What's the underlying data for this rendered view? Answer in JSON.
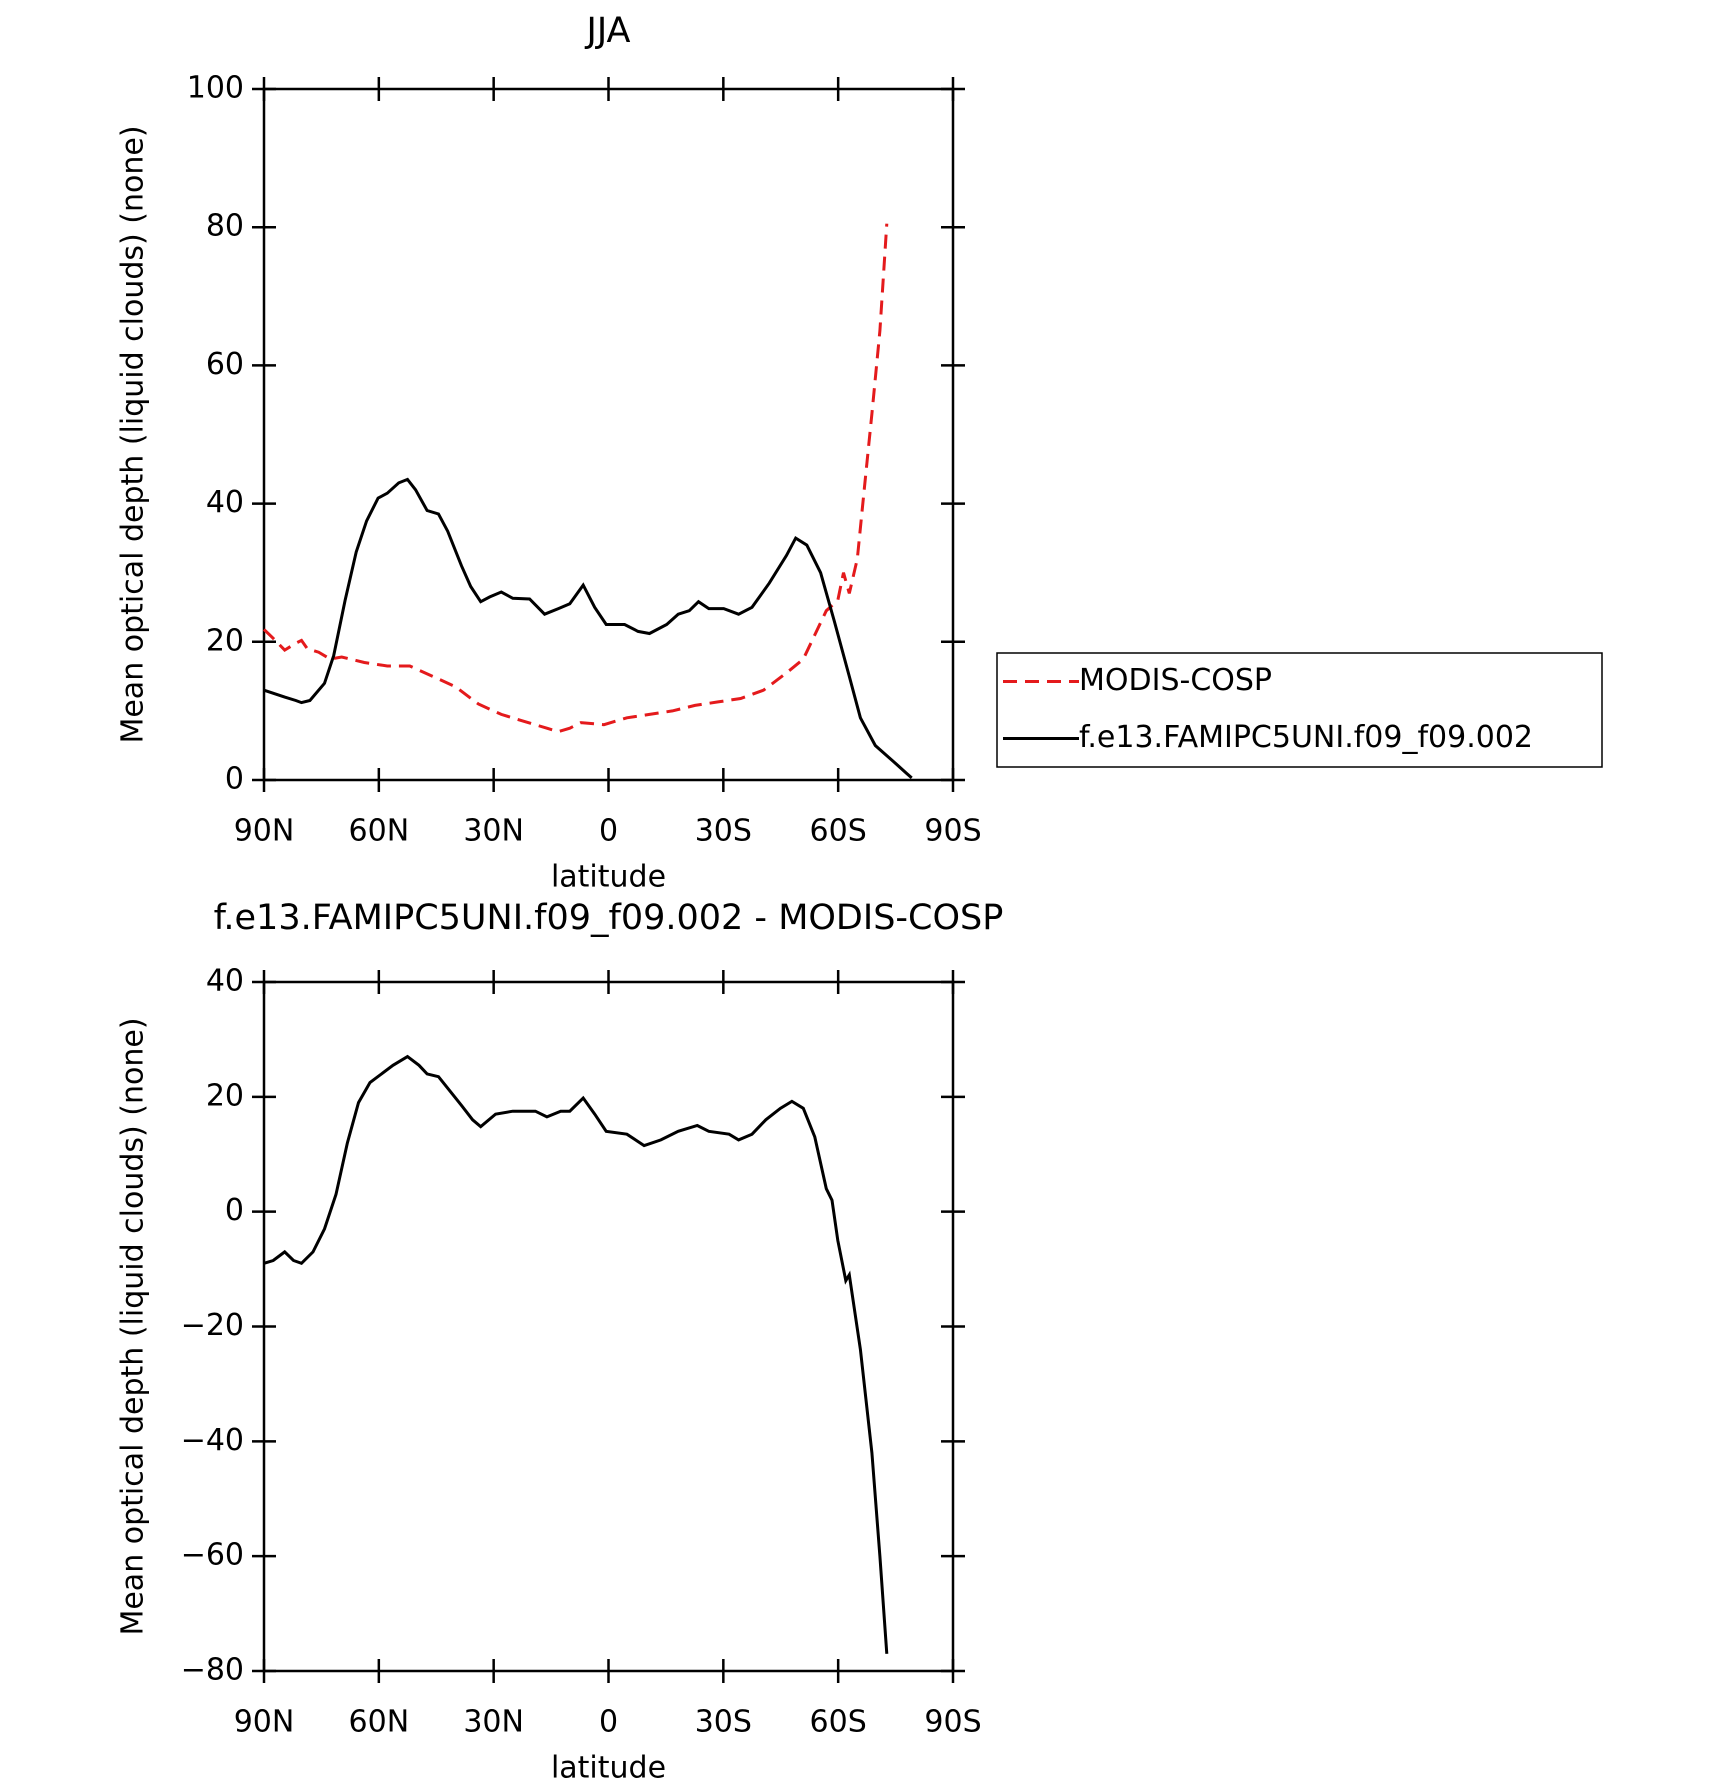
{
  "chart_data": [
    {
      "type": "line",
      "title": "JJA",
      "xlabel": "latitude",
      "ylabel": "Mean optical depth (liquid clouds) (none)",
      "xlim": [
        90,
        -90
      ],
      "xticks": [
        {
          "value": 90,
          "label": "90N"
        },
        {
          "value": 60,
          "label": "60N"
        },
        {
          "value": 30,
          "label": "30N"
        },
        0,
        {
          "value": -30,
          "label": "30S"
        },
        {
          "value": -60,
          "label": "60S"
        },
        {
          "value": -90,
          "label": "90S"
        }
      ],
      "ylim": [
        0,
        100
      ],
      "yticks": [
        0,
        20,
        40,
        60,
        80,
        100
      ],
      "legend": "right",
      "series": [
        {
          "name": "MODIS-COSP",
          "color": "#e41a1c",
          "dash": "dashed",
          "x": [
            90,
            87.6,
            84.6,
            81.7,
            80.2,
            78.7,
            75.7,
            72.7,
            69.7,
            63.8,
            57.8,
            51.9,
            45.9,
            40,
            34,
            28,
            22.1,
            16.1,
            13.1,
            10.1,
            7.2,
            1.2,
            -4.8,
            -10.7,
            -16.7,
            -22.6,
            -28.6,
            -34.5,
            -40.5,
            -46.5,
            -50.9,
            -53.9,
            -56.9,
            -59.9,
            -61.4,
            -62.9,
            -65,
            -66.8,
            -68.8,
            -70.9,
            -72.7
          ],
          "values": [
            21.8,
            20.5,
            18.8,
            19.8,
            20.2,
            19,
            18.5,
            17.5,
            17.8,
            17,
            16.5,
            16.5,
            15,
            13.5,
            11,
            9.5,
            8.5,
            7.5,
            7,
            7.5,
            8.3,
            8,
            9,
            9.5,
            10,
            10.8,
            11.3,
            11.8,
            13,
            15.5,
            17.5,
            21,
            24.5,
            26,
            30,
            27,
            32,
            42,
            53,
            65,
            80.5
          ]
        },
        {
          "name": "f.e13.FAMIPC5UNI.f09_f09.002",
          "color": "#000000",
          "dash": "solid",
          "x": [
            90,
            84.6,
            81.7,
            80.2,
            78,
            74.2,
            71.8,
            68.8,
            65.9,
            63.2,
            60.2,
            57.8,
            54.8,
            52.5,
            50.4,
            47.4,
            44.4,
            42,
            38.4,
            36,
            33.4,
            31,
            28,
            25,
            20.6,
            16.7,
            13.1,
            10.1,
            6.6,
            3.6,
            0.6,
            -4.2,
            -7.7,
            -10.7,
            -15.2,
            -18.2,
            -21.1,
            -23.5,
            -26.2,
            -30.1,
            -34,
            -37.5,
            -42,
            -46.5,
            -48.9,
            -51.8,
            -55.4,
            -59,
            -62.9,
            -65.8,
            -69.7,
            -74.8,
            -77.8,
            -79.2
          ],
          "values": [
            13,
            12,
            11.5,
            11.2,
            11.5,
            14,
            18,
            26,
            33,
            37.5,
            40.8,
            41.5,
            43,
            43.5,
            42,
            39,
            38.5,
            36,
            31,
            28,
            25.8,
            26.5,
            27.2,
            26.3,
            26.2,
            24,
            24.8,
            25.5,
            28.2,
            25,
            22.5,
            22.5,
            21.5,
            21.2,
            22.5,
            24,
            24.5,
            25.8,
            24.8,
            24.8,
            24,
            25,
            28.5,
            32.5,
            35,
            34,
            30,
            23,
            15,
            9,
            5,
            2.5,
            1,
            0.3
          ]
        }
      ]
    },
    {
      "type": "line",
      "title": "f.e13.FAMIPC5UNI.f09_f09.002 - MODIS-COSP",
      "xlabel": "latitude",
      "ylabel": "Mean optical depth (liquid clouds) (none)",
      "xlim": [
        90,
        -90
      ],
      "xticks": [
        {
          "value": 90,
          "label": "90N"
        },
        {
          "value": 60,
          "label": "60N"
        },
        {
          "value": 30,
          "label": "30N"
        },
        0,
        {
          "value": -30,
          "label": "30S"
        },
        {
          "value": -60,
          "label": "60S"
        },
        {
          "value": -90,
          "label": "90S"
        }
      ],
      "ylim": [
        -80,
        40
      ],
      "yticks": [
        {
          "value": -80,
          "label": "−80"
        },
        {
          "value": -60,
          "label": "−60"
        },
        {
          "value": -40,
          "label": "−40"
        },
        {
          "value": -20,
          "label": "−20"
        },
        0,
        20,
        40
      ],
      "series": [
        {
          "color": "#000000",
          "dash": "solid",
          "x": [
            90,
            87.6,
            84.6,
            82.3,
            80.2,
            77.2,
            74.2,
            71.2,
            68.2,
            65.3,
            62.3,
            59.3,
            56.3,
            52.5,
            49.5,
            47.4,
            44.4,
            41.4,
            38.4,
            35.5,
            33.4,
            29.5,
            25,
            19.1,
            16.1,
            12.5,
            10.1,
            6.6,
            3.6,
            0.6,
            -4.8,
            -9.3,
            -13.7,
            -18.2,
            -23.2,
            -26.2,
            -31.5,
            -34,
            -37.5,
            -41.1,
            -44.9,
            -47.9,
            -50.9,
            -53.9,
            -56.9,
            -58.4,
            -59.9,
            -62,
            -62.9,
            -65.8,
            -68.8,
            -70.9,
            -72.7
          ],
          "values": [
            -9,
            -8.5,
            -7,
            -8.5,
            -9,
            -7,
            -3,
            3,
            12,
            19,
            22.5,
            24,
            25.5,
            27,
            25.5,
            24,
            23.5,
            21,
            18.5,
            16,
            14.8,
            17,
            17.5,
            17.5,
            16.5,
            17.5,
            17.5,
            19.8,
            17,
            14,
            13.5,
            11.5,
            12.5,
            14,
            15,
            14,
            13.5,
            12.5,
            13.5,
            16,
            18,
            19.2,
            18,
            13,
            4,
            2,
            -5,
            -12,
            -11,
            -24,
            -42,
            -60,
            -77
          ]
        }
      ]
    }
  ]
}
